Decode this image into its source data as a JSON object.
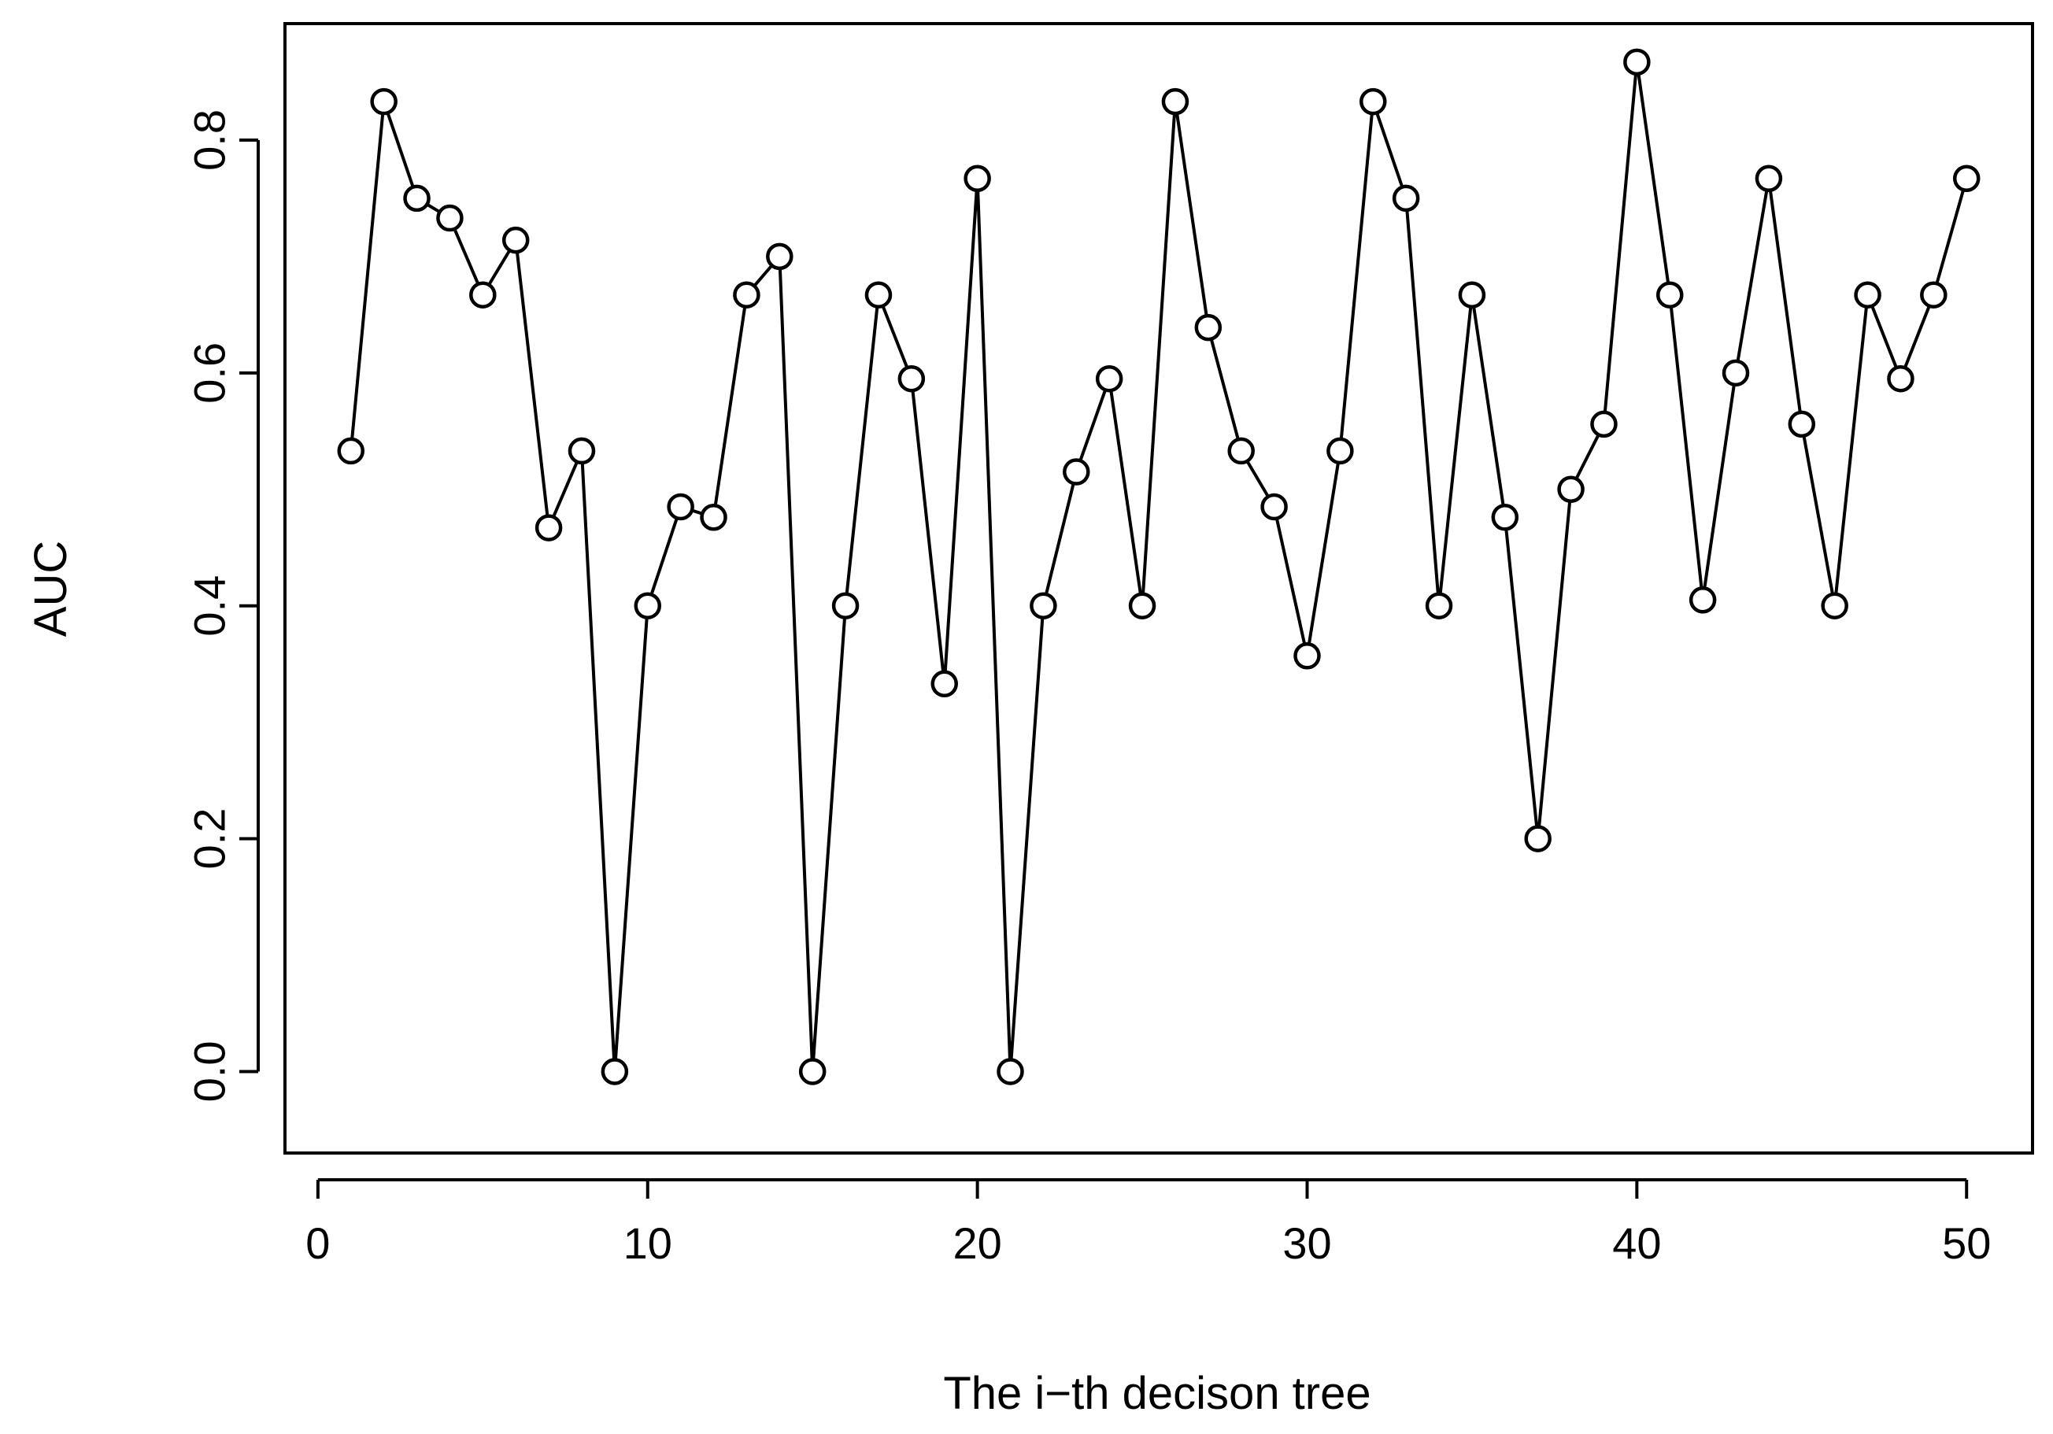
{
  "chart_data": {
    "type": "line",
    "title": "",
    "xlabel": "The i−th decison tree",
    "ylabel": "AUC",
    "xlim": [
      -1,
      52
    ],
    "ylim": [
      -0.07,
      0.9
    ],
    "x_ticks": [
      0,
      10,
      20,
      30,
      40,
      50
    ],
    "x_tick_labels": [
      "0",
      "10",
      "20",
      "30",
      "40",
      "50"
    ],
    "y_ticks": [
      0.0,
      0.2,
      0.4,
      0.6,
      0.8
    ],
    "y_tick_labels": [
      "0.0",
      "0.2",
      "0.4",
      "0.6",
      "0.8"
    ],
    "grid": false,
    "legend": "none",
    "marker": "open-circle",
    "line_color": "#000000",
    "series": [
      {
        "x": [
          1,
          2,
          3,
          4,
          5,
          6,
          7,
          8,
          9,
          10,
          11,
          12,
          13,
          14,
          15,
          16,
          17,
          18,
          19,
          20,
          21,
          22,
          23,
          24,
          25,
          26,
          27,
          28,
          29,
          30,
          31,
          32,
          33,
          34,
          35,
          36,
          37,
          38,
          39,
          40,
          41,
          42,
          43,
          44,
          45,
          46,
          47,
          48,
          49,
          50
        ],
        "values": [
          0.533,
          0.833,
          0.75,
          0.733,
          0.667,
          0.714,
          0.467,
          0.533,
          0.0,
          0.4,
          0.485,
          0.476,
          0.667,
          0.7,
          0.0,
          0.4,
          0.667,
          0.595,
          0.333,
          0.767,
          0.0,
          0.4,
          0.515,
          0.595,
          0.4,
          0.833,
          0.639,
          0.533,
          0.485,
          0.357,
          0.533,
          0.833,
          0.75,
          0.4,
          0.667,
          0.476,
          0.2,
          0.5,
          0.556,
          0.867,
          0.667,
          0.405,
          0.6,
          0.767,
          0.556,
          0.4,
          0.667,
          0.595,
          0.667,
          0.767
        ]
      }
    ]
  }
}
